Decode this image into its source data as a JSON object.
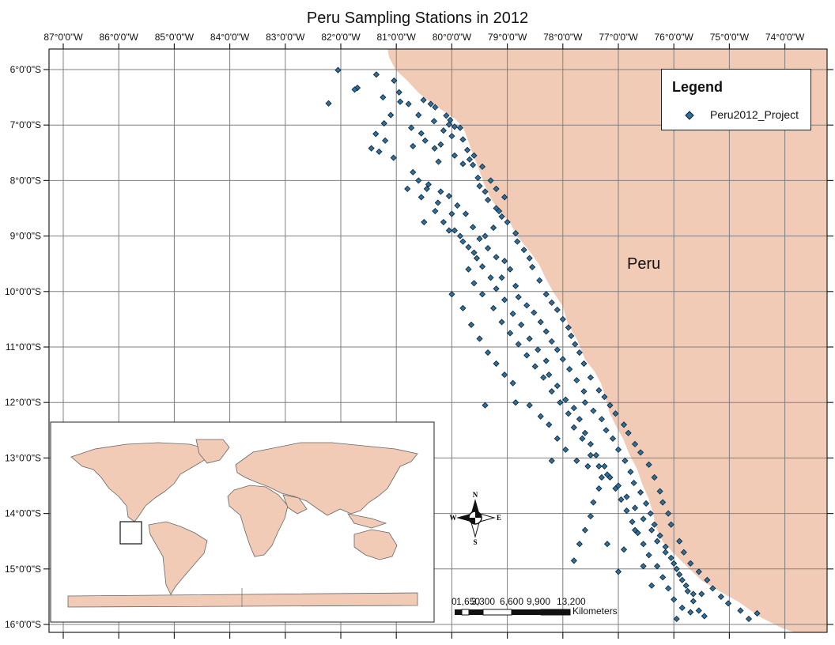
{
  "title": "Peru Sampling Stations in 2012",
  "longitude_labels": [
    "87°0'0\"W",
    "86°0'0\"W",
    "85°0'0\"W",
    "84°0'0\"W",
    "83°0'0\"W",
    "82°0'0\"W",
    "81°0'0\"W",
    "80°0'0\"W",
    "79°0'0\"W",
    "78°0'0\"W",
    "77°0'0\"W",
    "76°0'0\"W",
    "75°0'0\"W",
    "74°0'0\"W"
  ],
  "latitude_labels": [
    "6°0'0\"S",
    "7°0'0\"S",
    "8°0'0\"S",
    "9°0'0\"S",
    "10°0'0\"S",
    "11°0'0\"S",
    "12°0'0\"S",
    "13°0'0\"S",
    "14°0'0\"S",
    "15°0'0\"S",
    "16°0'0\"S"
  ],
  "legend": {
    "title": "Legend",
    "item_label": "Peru2012_Project"
  },
  "country_label": "Peru",
  "north_arrow": {
    "n": "N",
    "s": "S",
    "e": "E",
    "w": "W"
  },
  "scale_bar": {
    "ticks": [
      "0",
      "1,650",
      "3,300",
      "6,600",
      "9,900",
      "13,200"
    ],
    "unit": "Kilometers"
  },
  "colors": {
    "land": "#f2cbb7",
    "grid": "#7f7f7f",
    "station_fill": "#2f6f9c",
    "station_stroke": "#0b2030"
  },
  "stations": [
    [
      -82.05,
      -6.01
    ],
    [
      -82.22,
      -6.61
    ],
    [
      -81.7,
      -6.33
    ],
    [
      -81.75,
      -6.36
    ],
    [
      -81.36,
      -6.09
    ],
    [
      -81.24,
      -6.5
    ],
    [
      -81.04,
      -6.2
    ],
    [
      -80.95,
      -6.41
    ],
    [
      -80.93,
      -6.58
    ],
    [
      -80.78,
      -6.62
    ],
    [
      -80.6,
      -6.82
    ],
    [
      -80.51,
      -6.55
    ],
    [
      -80.38,
      -6.62
    ],
    [
      -80.3,
      -6.68
    ],
    [
      -80.32,
      -6.93
    ],
    [
      -80.1,
      -6.83
    ],
    [
      -80.03,
      -6.91
    ],
    [
      -79.95,
      -7.03
    ],
    [
      -80.05,
      -6.99
    ],
    [
      -81.1,
      -6.82
    ],
    [
      -81.22,
      -6.97
    ],
    [
      -81.37,
      -7.16
    ],
    [
      -81.2,
      -7.28
    ],
    [
      -81.45,
      -7.42
    ],
    [
      -81.31,
      -7.48
    ],
    [
      -81.05,
      -7.59
    ],
    [
      -80.73,
      -7.05
    ],
    [
      -80.7,
      -7.38
    ],
    [
      -80.48,
      -7.28
    ],
    [
      -80.31,
      -7.42
    ],
    [
      -80.24,
      -7.66
    ],
    [
      -79.8,
      -7.26
    ],
    [
      -79.72,
      -7.45
    ],
    [
      -79.68,
      -7.62
    ],
    [
      -79.62,
      -7.72
    ],
    [
      -79.53,
      -7.95
    ],
    [
      -79.5,
      -8.1
    ],
    [
      -79.4,
      -8.2
    ],
    [
      -79.35,
      -8.35
    ],
    [
      -79.2,
      -8.5
    ],
    [
      -79.1,
      -8.65
    ],
    [
      -79.0,
      -8.75
    ],
    [
      -78.85,
      -8.95
    ],
    [
      -78.82,
      -9.1
    ],
    [
      -78.7,
      -9.25
    ],
    [
      -78.6,
      -9.4
    ],
    [
      -78.55,
      -9.56
    ],
    [
      -78.42,
      -9.8
    ],
    [
      -78.3,
      -10.05
    ],
    [
      -78.2,
      -10.2
    ],
    [
      -78.1,
      -10.33
    ],
    [
      -78.0,
      -10.5
    ],
    [
      -77.9,
      -10.65
    ],
    [
      -77.85,
      -10.8
    ],
    [
      -77.78,
      -10.95
    ],
    [
      -77.7,
      -11.1
    ],
    [
      -77.62,
      -11.3
    ],
    [
      -77.5,
      -11.55
    ],
    [
      -77.35,
      -11.78
    ],
    [
      -77.25,
      -11.9
    ],
    [
      -77.15,
      -12.05
    ],
    [
      -77.05,
      -12.2
    ],
    [
      -76.9,
      -12.4
    ],
    [
      -76.82,
      -12.55
    ],
    [
      -76.7,
      -12.75
    ],
    [
      -76.6,
      -12.9
    ],
    [
      -76.45,
      -13.12
    ],
    [
      -76.35,
      -13.35
    ],
    [
      -76.25,
      -13.6
    ],
    [
      -76.2,
      -13.8
    ],
    [
      -76.1,
      -14.0
    ],
    [
      -76.05,
      -14.2
    ],
    [
      -75.9,
      -14.5
    ],
    [
      -75.82,
      -14.7
    ],
    [
      -75.7,
      -14.9
    ],
    [
      -75.55,
      -15.05
    ],
    [
      -75.4,
      -15.2
    ],
    [
      -75.3,
      -15.35
    ],
    [
      -75.15,
      -15.5
    ],
    [
      -75.02,
      -15.62
    ],
    [
      -74.8,
      -15.75
    ],
    [
      -74.5,
      -15.8
    ],
    [
      -74.65,
      -15.9
    ],
    [
      -80.7,
      -7.85
    ],
    [
      -80.6,
      -8.0
    ],
    [
      -80.42,
      -8.07
    ],
    [
      -80.2,
      -8.2
    ],
    [
      -80.05,
      -8.28
    ],
    [
      -79.9,
      -8.45
    ],
    [
      -79.75,
      -8.6
    ],
    [
      -79.62,
      -8.84
    ],
    [
      -79.5,
      -9.05
    ],
    [
      -79.35,
      -9.22
    ],
    [
      -79.2,
      -9.38
    ],
    [
      -79.05,
      -9.45
    ],
    [
      -78.95,
      -9.6
    ],
    [
      -79.1,
      -9.75
    ],
    [
      -78.85,
      -9.9
    ],
    [
      -78.8,
      -10.1
    ],
    [
      -78.65,
      -10.25
    ],
    [
      -78.52,
      -10.38
    ],
    [
      -78.4,
      -10.55
    ],
    [
      -78.3,
      -10.72
    ],
    [
      -78.2,
      -10.9
    ],
    [
      -78.1,
      -11.05
    ],
    [
      -78.0,
      -11.22
    ],
    [
      -77.88,
      -11.4
    ],
    [
      -77.75,
      -11.6
    ],
    [
      -77.62,
      -11.8
    ],
    [
      -77.6,
      -12.0
    ],
    [
      -77.45,
      -12.15
    ],
    [
      -77.3,
      -12.3
    ],
    [
      -77.22,
      -12.5
    ],
    [
      -77.1,
      -12.65
    ],
    [
      -77.0,
      -12.85
    ],
    [
      -76.88,
      -13.05
    ],
    [
      -76.78,
      -13.25
    ],
    [
      -76.72,
      -13.45
    ],
    [
      -76.6,
      -13.62
    ],
    [
      -76.5,
      -13.82
    ],
    [
      -76.42,
      -14.0
    ],
    [
      -76.35,
      -14.2
    ],
    [
      -76.25,
      -14.4
    ],
    [
      -76.15,
      -14.6
    ],
    [
      -76.05,
      -14.8
    ],
    [
      -75.95,
      -15.0
    ],
    [
      -75.85,
      -15.2
    ],
    [
      -75.75,
      -15.4
    ],
    [
      -75.65,
      -15.58
    ],
    [
      -75.55,
      -15.75
    ],
    [
      -75.45,
      -15.85
    ],
    [
      -75.7,
      -15.78
    ],
    [
      -75.95,
      -15.9
    ],
    [
      -80.45,
      -8.15
    ],
    [
      -80.25,
      -8.4
    ],
    [
      -80.0,
      -8.6
    ],
    [
      -80.05,
      -8.9
    ],
    [
      -79.85,
      -9.0
    ],
    [
      -79.7,
      -9.2
    ],
    [
      -79.55,
      -9.4
    ],
    [
      -79.45,
      -9.55
    ],
    [
      -79.3,
      -9.75
    ],
    [
      -79.2,
      -9.95
    ],
    [
      -79.05,
      -10.15
    ],
    [
      -78.9,
      -10.4
    ],
    [
      -78.75,
      -10.6
    ],
    [
      -78.6,
      -10.85
    ],
    [
      -78.45,
      -11.05
    ],
    [
      -78.3,
      -11.25
    ],
    [
      -78.25,
      -11.5
    ],
    [
      -78.1,
      -11.7
    ],
    [
      -77.95,
      -11.95
    ],
    [
      -77.8,
      -12.1
    ],
    [
      -77.7,
      -12.3
    ],
    [
      -77.6,
      -12.55
    ],
    [
      -77.5,
      -12.75
    ],
    [
      -77.4,
      -12.95
    ],
    [
      -77.25,
      -13.15
    ],
    [
      -77.15,
      -13.35
    ],
    [
      -77.05,
      -13.55
    ],
    [
      -76.95,
      -13.75
    ],
    [
      -76.85,
      -13.95
    ],
    [
      -76.75,
      -14.15
    ],
    [
      -76.65,
      -14.35
    ],
    [
      -76.55,
      -14.55
    ],
    [
      -76.45,
      -14.75
    ],
    [
      -76.3,
      -14.95
    ],
    [
      -76.2,
      -15.15
    ],
    [
      -76.1,
      -15.35
    ],
    [
      -80.0,
      -10.05
    ],
    [
      -79.8,
      -10.3
    ],
    [
      -79.65,
      -10.6
    ],
    [
      -79.5,
      -10.85
    ],
    [
      -79.35,
      -11.1
    ],
    [
      -79.2,
      -11.3
    ],
    [
      -79.05,
      -11.5
    ],
    [
      -78.9,
      -11.65
    ],
    [
      -79.4,
      -12.05
    ],
    [
      -78.85,
      -12.0
    ],
    [
      -78.6,
      -12.05
    ],
    [
      -78.4,
      -12.25
    ],
    [
      -78.25,
      -12.4
    ],
    [
      -78.1,
      -12.65
    ],
    [
      -77.95,
      -12.85
    ],
    [
      -77.75,
      -13.05
    ],
    [
      -78.2,
      -13.05
    ],
    [
      -77.55,
      -13.15
    ],
    [
      -77.3,
      -13.35
    ],
    [
      -77.35,
      -13.55
    ],
    [
      -77.45,
      -13.8
    ],
    [
      -77.5,
      -14.05
    ],
    [
      -77.6,
      -14.3
    ],
    [
      -77.7,
      -14.55
    ],
    [
      -77.8,
      -14.85
    ],
    [
      -77.2,
      -14.55
    ],
    [
      -76.9,
      -14.65
    ],
    [
      -77.0,
      -15.05
    ],
    [
      -76.7,
      -14.3
    ],
    [
      -76.55,
      -14.95
    ],
    [
      -76.4,
      -15.3
    ],
    [
      -76.0,
      -15.55
    ],
    [
      -75.85,
      -15.7
    ],
    [
      -75.5,
      -15.45
    ],
    [
      -79.7,
      -9.6
    ],
    [
      -79.6,
      -9.85
    ],
    [
      -79.45,
      -10.05
    ],
    [
      -79.25,
      -10.3
    ],
    [
      -79.1,
      -10.55
    ],
    [
      -78.95,
      -10.75
    ],
    [
      -78.8,
      -10.95
    ],
    [
      -78.65,
      -11.15
    ],
    [
      -78.5,
      -11.35
    ],
    [
      -78.35,
      -11.55
    ],
    [
      -78.2,
      -11.8
    ],
    [
      -78.05,
      -12.0
    ],
    [
      -77.9,
      -12.2
    ],
    [
      -77.8,
      -12.45
    ],
    [
      -77.65,
      -12.65
    ],
    [
      -77.5,
      -12.95
    ],
    [
      -77.35,
      -13.15
    ],
    [
      -77.2,
      -13.3
    ],
    [
      -77.0,
      -13.5
    ],
    [
      -76.85,
      -13.7
    ],
    [
      -76.7,
      -13.9
    ],
    [
      -76.55,
      -14.1
    ],
    [
      -76.4,
      -14.3
    ],
    [
      -76.3,
      -14.5
    ],
    [
      -76.15,
      -14.7
    ],
    [
      -76.0,
      -14.9
    ],
    [
      -75.9,
      -15.1
    ],
    [
      -75.78,
      -15.3
    ],
    [
      -75.65,
      -15.45
    ],
    [
      -80.8,
      -8.15
    ],
    [
      -80.55,
      -8.3
    ],
    [
      -80.5,
      -8.75
    ],
    [
      -80.3,
      -8.55
    ],
    [
      -80.15,
      -8.75
    ],
    [
      -79.95,
      -8.9
    ],
    [
      -79.8,
      -9.1
    ],
    [
      -79.6,
      -9.3
    ],
    [
      -79.4,
      -9.0
    ],
    [
      -79.25,
      -8.85
    ],
    [
      -79.15,
      -8.55
    ],
    [
      -79.05,
      -8.3
    ],
    [
      -79.2,
      -8.15
    ],
    [
      -79.3,
      -8.0
    ],
    [
      -79.45,
      -7.75
    ],
    [
      -79.6,
      -7.55
    ],
    [
      -79.8,
      -7.7
    ],
    [
      -79.95,
      -7.55
    ],
    [
      -80.2,
      -7.35
    ],
    [
      -80.0,
      -7.2
    ],
    [
      -79.85,
      -7.05
    ],
    [
      -80.15,
      -7.1
    ],
    [
      -80.55,
      -7.15
    ]
  ]
}
